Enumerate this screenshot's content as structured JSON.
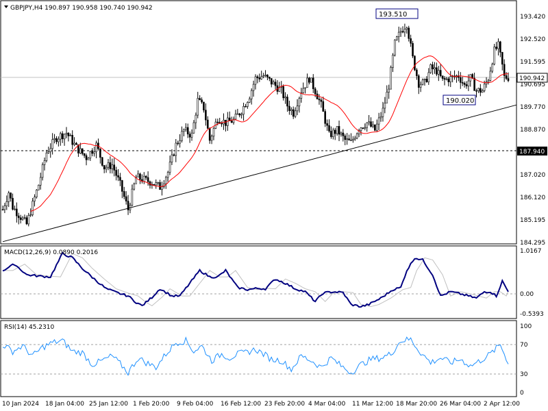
{
  "chart_data": [
    {
      "type": "candlestick",
      "title": "GBPJPY,H4  190.897 190.958 190.740 190.942",
      "symbol": "GBPJPY",
      "timeframe": "H4",
      "ohlc_last": {
        "open": 190.897,
        "high": 190.958,
        "low": 190.74,
        "close": 190.942
      },
      "y_ticks": [
        "193.420",
        "192.520",
        "191.595",
        "190.695",
        "189.770",
        "188.870",
        "187.945",
        "187.020",
        "186.120",
        "185.195",
        "184.295"
      ],
      "ylim": [
        184.295,
        193.85
      ],
      "x_ticks": [
        "10 Jan 2024",
        "18 Jan 04:00",
        "25 Jan 12:00",
        "1 Feb 20:00",
        "9 Feb 04:00",
        "16 Feb 12:00",
        "23 Feb 20:00",
        "4 Mar 04:00",
        "11 Mar 12:00",
        "18 Mar 20:00",
        "26 Mar 04:00",
        "2 Apr 12:00"
      ],
      "price_anchors": [
        [
          0,
          185.6
        ],
        [
          3,
          186.3
        ],
        [
          5,
          185.7
        ],
        [
          8,
          185.4
        ],
        [
          12,
          185.0
        ],
        [
          15,
          185.8
        ],
        [
          18,
          186.6
        ],
        [
          22,
          187.9
        ],
        [
          27,
          188.5
        ],
        [
          32,
          188.7
        ],
        [
          37,
          188.1
        ],
        [
          42,
          187.7
        ],
        [
          47,
          188.2
        ],
        [
          51,
          187.3
        ],
        [
          55,
          187.4
        ],
        [
          59,
          186.6
        ],
        [
          63,
          185.6
        ],
        [
          67,
          186.9
        ],
        [
          71,
          186.8
        ],
        [
          75,
          186.7
        ],
        [
          79,
          186.5
        ],
        [
          83,
          187.1
        ],
        [
          87,
          188.2
        ],
        [
          91,
          188.8
        ],
        [
          95,
          188.6
        ],
        [
          98,
          190.0
        ],
        [
          101,
          189.7
        ],
        [
          104,
          188.4
        ],
        [
          108,
          189.3
        ],
        [
          112,
          189.1
        ],
        [
          116,
          189.2
        ],
        [
          120,
          189.6
        ],
        [
          124,
          190.2
        ],
        [
          127,
          190.9
        ],
        [
          131,
          191.0
        ],
        [
          134,
          190.8
        ],
        [
          137,
          190.6
        ],
        [
          140,
          190.4
        ],
        [
          143,
          189.8
        ],
        [
          146,
          189.5
        ],
        [
          150,
          190.4
        ],
        [
          154,
          190.9
        ],
        [
          157,
          190.4
        ],
        [
          160,
          189.8
        ],
        [
          164,
          188.6
        ],
        [
          168,
          188.8
        ],
        [
          172,
          188.4
        ],
        [
          175,
          188.3
        ],
        [
          179,
          188.9
        ],
        [
          183,
          189.1
        ],
        [
          187,
          188.8
        ],
        [
          191,
          189.6
        ],
        [
          194,
          190.6
        ],
        [
          197,
          192.3
        ],
        [
          200,
          192.8
        ],
        [
          203,
          193.1
        ],
        [
          206,
          191.7
        ],
        [
          209,
          190.7
        ],
        [
          212,
          190.7
        ],
        [
          215,
          191.3
        ],
        [
          218,
          191.2
        ],
        [
          221,
          190.8
        ],
        [
          225,
          190.9
        ],
        [
          229,
          191.0
        ],
        [
          232,
          190.6
        ],
        [
          235,
          190.9
        ],
        [
          238,
          190.4
        ],
        [
          241,
          190.4
        ],
        [
          244,
          190.9
        ],
        [
          247,
          192.0
        ],
        [
          249,
          192.2
        ],
        [
          251,
          191.4
        ],
        [
          252,
          190.94
        ]
      ],
      "series": [
        {
          "name": "",
          "kind": "moving-average",
          "color": "#ff0000"
        }
      ],
      "current_price": 190.942,
      "current_price_label": "190.942",
      "horizontal_level": 187.94,
      "horizontal_level_label": "187.940",
      "annotations": [
        {
          "label": "193.510",
          "price": 193.51,
          "bar": 205
        },
        {
          "label": "190.020",
          "price": 190.02,
          "bar": 243
        }
      ],
      "trendline": {
        "from": [
          0,
          184.3
        ],
        "to": [
          252,
          189.82
        ]
      }
    },
    {
      "type": "line",
      "title": "MACD(12,26,9) 0.0890 0.2016",
      "y_ticks": [
        "1.0167",
        "0.00",
        "-0.5393"
      ],
      "ylim": [
        -0.62,
        1.12
      ],
      "macd_anchors": [
        [
          0,
          0.55
        ],
        [
          6,
          0.7
        ],
        [
          12,
          0.45
        ],
        [
          18,
          0.42
        ],
        [
          24,
          0.4
        ],
        [
          30,
          0.95
        ],
        [
          35,
          0.85
        ],
        [
          40,
          0.6
        ],
        [
          46,
          0.35
        ],
        [
          52,
          0.12
        ],
        [
          58,
          0.02
        ],
        [
          63,
          -0.05
        ],
        [
          67,
          -0.2
        ],
        [
          70,
          -0.28
        ],
        [
          75,
          -0.08
        ],
        [
          79,
          0.12
        ],
        [
          85,
          -0.05
        ],
        [
          89,
          -0.05
        ],
        [
          94,
          0.25
        ],
        [
          99,
          0.55
        ],
        [
          104,
          0.4
        ],
        [
          108,
          0.4
        ],
        [
          112,
          0.55
        ],
        [
          115,
          0.35
        ],
        [
          118,
          0.15
        ],
        [
          123,
          0.1
        ],
        [
          128,
          0.13
        ],
        [
          132,
          0.12
        ],
        [
          137,
          0.35
        ],
        [
          142,
          0.25
        ],
        [
          147,
          0.12
        ],
        [
          152,
          0.05
        ],
        [
          157,
          -0.18
        ],
        [
          161,
          0.02
        ],
        [
          166,
          0.05
        ],
        [
          171,
          0.03
        ],
        [
          175,
          -0.25
        ],
        [
          180,
          -0.3
        ],
        [
          184,
          -0.25
        ],
        [
          190,
          -0.1
        ],
        [
          196,
          0.1
        ],
        [
          200,
          0.15
        ],
        [
          203,
          0.55
        ],
        [
          207,
          0.85
        ],
        [
          211,
          0.8
        ],
        [
          216,
          0.45
        ],
        [
          220,
          -0.05
        ],
        [
          225,
          0.05
        ],
        [
          230,
          0.0
        ],
        [
          234,
          -0.05
        ],
        [
          238,
          -0.1
        ],
        [
          242,
          0.05
        ],
        [
          245,
          0.05
        ],
        [
          248,
          -0.05
        ],
        [
          251,
          0.3
        ],
        [
          254,
          0.05
        ]
      ],
      "series": [
        {
          "name": "",
          "color": "#000080"
        },
        {
          "name": "",
          "color": "#c0c0c0"
        }
      ]
    },
    {
      "type": "line",
      "title": "RSI(14) 45.2310",
      "y_ticks": [
        "100",
        "70",
        "30",
        "0"
      ],
      "ylim": [
        0,
        100
      ],
      "levels": [
        70,
        30
      ],
      "rsi_anchors": [
        [
          0,
          72
        ],
        [
          5,
          62
        ],
        [
          10,
          70
        ],
        [
          15,
          55
        ],
        [
          20,
          68
        ],
        [
          25,
          75
        ],
        [
          30,
          78
        ],
        [
          35,
          62
        ],
        [
          40,
          60
        ],
        [
          45,
          42
        ],
        [
          50,
          48
        ],
        [
          55,
          55
        ],
        [
          60,
          40
        ],
        [
          63,
          30
        ],
        [
          68,
          52
        ],
        [
          72,
          45
        ],
        [
          77,
          38
        ],
        [
          82,
          58
        ],
        [
          87,
          75
        ],
        [
          92,
          78
        ],
        [
          96,
          62
        ],
        [
          100,
          70
        ],
        [
          105,
          48
        ],
        [
          110,
          58
        ],
        [
          114,
          52
        ],
        [
          118,
          58
        ],
        [
          122,
          60
        ],
        [
          127,
          65
        ],
        [
          131,
          58
        ],
        [
          135,
          50
        ],
        [
          140,
          48
        ],
        [
          145,
          35
        ],
        [
          150,
          55
        ],
        [
          155,
          48
        ],
        [
          160,
          38
        ],
        [
          165,
          52
        ],
        [
          170,
          40
        ],
        [
          175,
          30
        ],
        [
          180,
          42
        ],
        [
          185,
          50
        ],
        [
          190,
          52
        ],
        [
          195,
          58
        ],
        [
          200,
          78
        ],
        [
          205,
          80
        ],
        [
          210,
          60
        ],
        [
          215,
          45
        ],
        [
          220,
          52
        ],
        [
          225,
          45
        ],
        [
          230,
          50
        ],
        [
          235,
          40
        ],
        [
          240,
          48
        ],
        [
          245,
          58
        ],
        [
          250,
          72
        ],
        [
          254,
          45
        ]
      ],
      "series": [
        {
          "name": "",
          "color": "#1e90ff"
        }
      ]
    }
  ]
}
